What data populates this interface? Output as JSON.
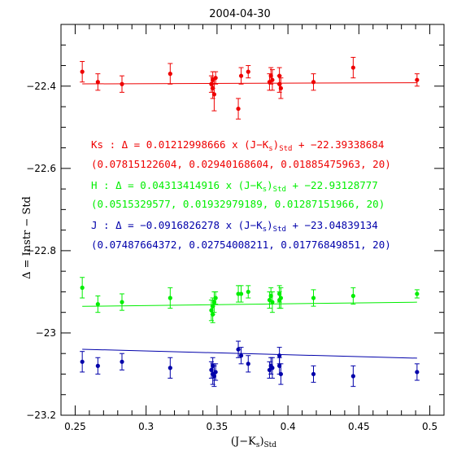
{
  "chart_data": {
    "type": "scatter",
    "title": "2004-04-30",
    "xlabel": {
      "main": "(J−K",
      "sub1": "s",
      "close": ")",
      "sub2": "Std"
    },
    "ylabel": "Δ = Instr − Std",
    "xlim": [
      0.24,
      0.51
    ],
    "ylim": [
      -23.2,
      -22.25
    ],
    "xticks": [
      0.25,
      0.3,
      0.35,
      0.4,
      0.45,
      0.5
    ],
    "xtick_labels": [
      "0.25",
      "0.3",
      "0.35",
      "0.4",
      "0.45",
      "0.5"
    ],
    "yticks": [
      -22.4,
      -22.6,
      -22.8,
      -23,
      -23.2
    ],
    "ytick_labels": [
      "−22.4",
      "−22.6",
      "−22.8",
      "−23",
      "−23.2"
    ],
    "grid": false,
    "series": [
      {
        "name": "Ks",
        "color": "#ee0000",
        "fit": {
          "slope": 0.01212998666,
          "intercept": -22.39338684
        },
        "points": [
          {
            "x": 0.255,
            "y": -22.365,
            "err": 0.025
          },
          {
            "x": 0.266,
            "y": -22.39,
            "err": 0.02
          },
          {
            "x": 0.283,
            "y": -22.395,
            "err": 0.02
          },
          {
            "x": 0.317,
            "y": -22.37,
            "err": 0.025
          },
          {
            "x": 0.346,
            "y": -22.395,
            "err": 0.02
          },
          {
            "x": 0.347,
            "y": -22.385,
            "err": 0.02
          },
          {
            "x": 0.347,
            "y": -22.405,
            "err": 0.025
          },
          {
            "x": 0.348,
            "y": -22.42,
            "err": 0.04
          },
          {
            "x": 0.349,
            "y": -22.38,
            "err": 0.015
          },
          {
            "x": 0.365,
            "y": -22.455,
            "err": 0.025
          },
          {
            "x": 0.367,
            "y": -22.375,
            "err": 0.02
          },
          {
            "x": 0.372,
            "y": -22.365,
            "err": 0.015
          },
          {
            "x": 0.387,
            "y": -22.39,
            "err": 0.02
          },
          {
            "x": 0.388,
            "y": -22.375,
            "err": 0.02
          },
          {
            "x": 0.389,
            "y": -22.385,
            "err": 0.025
          },
          {
            "x": 0.394,
            "y": -22.375,
            "err": 0.02
          },
          {
            "x": 0.394,
            "y": -22.395,
            "err": 0.02
          },
          {
            "x": 0.395,
            "y": -22.405,
            "err": 0.025
          },
          {
            "x": 0.418,
            "y": -22.39,
            "err": 0.02
          },
          {
            "x": 0.446,
            "y": -22.355,
            "err": 0.025
          },
          {
            "x": 0.491,
            "y": -22.385,
            "err": 0.015
          }
        ]
      },
      {
        "name": "H",
        "color": "#00ee00",
        "fit": {
          "slope": 0.04313414916,
          "intercept": -22.93128777
        },
        "points": [
          {
            "x": 0.255,
            "y": -22.89,
            "err": 0.025
          },
          {
            "x": 0.266,
            "y": -22.93,
            "err": 0.02
          },
          {
            "x": 0.283,
            "y": -22.925,
            "err": 0.02
          },
          {
            "x": 0.317,
            "y": -22.915,
            "err": 0.025
          },
          {
            "x": 0.346,
            "y": -22.945,
            "err": 0.025
          },
          {
            "x": 0.347,
            "y": -22.935,
            "err": 0.02
          },
          {
            "x": 0.347,
            "y": -22.955,
            "err": 0.02
          },
          {
            "x": 0.348,
            "y": -22.925,
            "err": 0.025
          },
          {
            "x": 0.349,
            "y": -22.915,
            "err": 0.015
          },
          {
            "x": 0.365,
            "y": -22.905,
            "err": 0.02
          },
          {
            "x": 0.367,
            "y": -22.905,
            "err": 0.02
          },
          {
            "x": 0.372,
            "y": -22.9,
            "err": 0.015
          },
          {
            "x": 0.387,
            "y": -22.92,
            "err": 0.02
          },
          {
            "x": 0.388,
            "y": -22.91,
            "err": 0.02
          },
          {
            "x": 0.389,
            "y": -22.925,
            "err": 0.025
          },
          {
            "x": 0.394,
            "y": -22.905,
            "err": 0.02
          },
          {
            "x": 0.394,
            "y": -22.92,
            "err": 0.02
          },
          {
            "x": 0.395,
            "y": -22.915,
            "err": 0.025
          },
          {
            "x": 0.418,
            "y": -22.915,
            "err": 0.02
          },
          {
            "x": 0.446,
            "y": -22.91,
            "err": 0.02
          },
          {
            "x": 0.491,
            "y": -22.905,
            "err": 0.01
          }
        ]
      },
      {
        "name": "J",
        "color": "#0000aa",
        "fit": {
          "slope": -0.0916826278,
          "intercept": -23.04839134
        },
        "points": [
          {
            "x": 0.255,
            "y": -23.07,
            "err": 0.025
          },
          {
            "x": 0.266,
            "y": -23.08,
            "err": 0.02
          },
          {
            "x": 0.283,
            "y": -23.07,
            "err": 0.02
          },
          {
            "x": 0.317,
            "y": -23.085,
            "err": 0.025
          },
          {
            "x": 0.346,
            "y": -23.09,
            "err": 0.02
          },
          {
            "x": 0.347,
            "y": -23.08,
            "err": 0.02
          },
          {
            "x": 0.347,
            "y": -23.1,
            "err": 0.025
          },
          {
            "x": 0.348,
            "y": -23.105,
            "err": 0.025
          },
          {
            "x": 0.349,
            "y": -23.095,
            "err": 0.02
          },
          {
            "x": 0.365,
            "y": -23.04,
            "err": 0.02
          },
          {
            "x": 0.367,
            "y": -23.055,
            "err": 0.02
          },
          {
            "x": 0.372,
            "y": -23.075,
            "err": 0.02
          },
          {
            "x": 0.387,
            "y": -23.09,
            "err": 0.02
          },
          {
            "x": 0.388,
            "y": -23.08,
            "err": 0.02
          },
          {
            "x": 0.389,
            "y": -23.085,
            "err": 0.025
          },
          {
            "x": 0.394,
            "y": -23.055,
            "err": 0.02
          },
          {
            "x": 0.394,
            "y": -23.08,
            "err": 0.02
          },
          {
            "x": 0.395,
            "y": -23.1,
            "err": 0.025
          },
          {
            "x": 0.418,
            "y": -23.1,
            "err": 0.02
          },
          {
            "x": 0.446,
            "y": -23.105,
            "err": 0.025
          },
          {
            "x": 0.491,
            "y": -23.095,
            "err": 0.02
          }
        ]
      }
    ],
    "annotations": [
      {
        "color": "#ee0000",
        "parts": [
          "Ks : Δ = 0.01212998666 x (J−K",
          "s",
          ")",
          "Std",
          " + −22.39338684"
        ]
      },
      {
        "color": "#ee0000",
        "text": "(0.07815122604, 0.02940168604, 0.01885475963, 20)"
      },
      {
        "color": "#00ee00",
        "parts": [
          "H : Δ = 0.04313414916 x (J−K",
          "s",
          ")",
          "Std",
          " + −22.93128777"
        ]
      },
      {
        "color": "#00ee00",
        "text": "(0.0515329577, 0.01932979189, 0.01287151966, 20)"
      },
      {
        "color": "#0000aa",
        "parts": [
          "J : Δ = −0.0916826278 x (J−K",
          "s",
          ")",
          "Std",
          " + −23.04839134"
        ]
      },
      {
        "color": "#0000aa",
        "text": "(0.07487664372, 0.02754008211, 0.01776849851, 20)"
      }
    ]
  }
}
